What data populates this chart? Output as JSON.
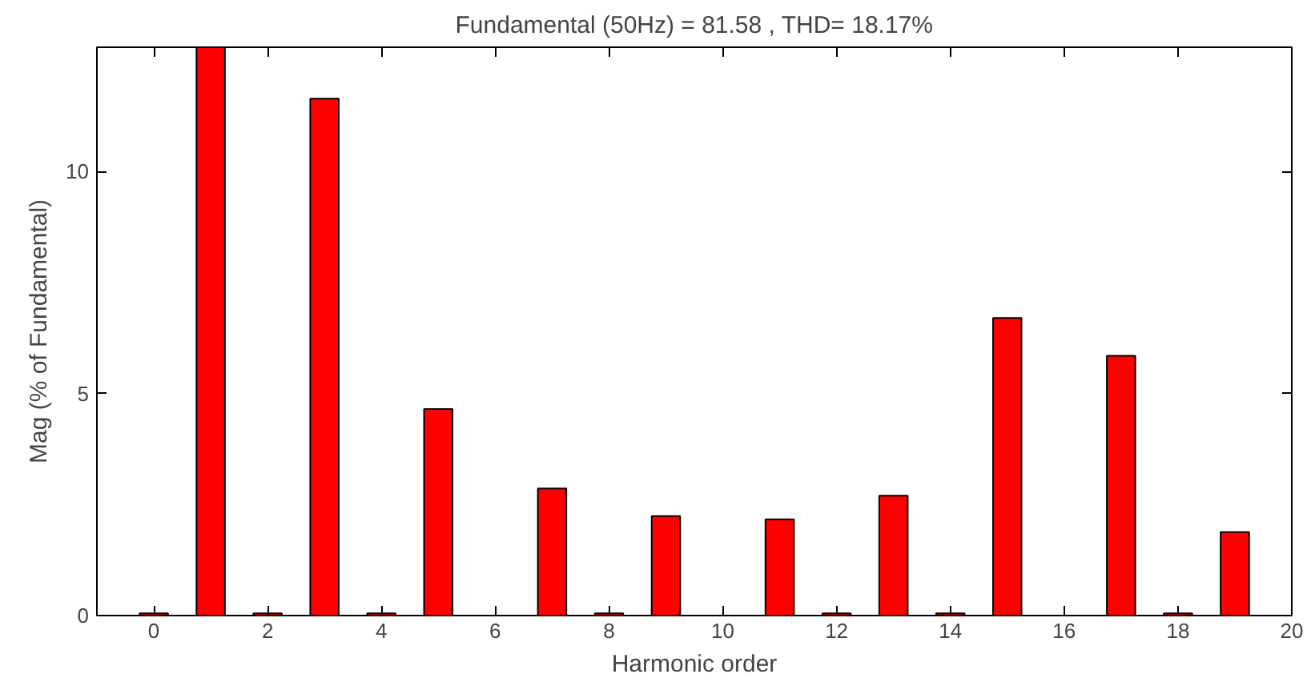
{
  "chart_data": {
    "type": "bar",
    "title": "Fundamental (50Hz) = 81.58 , THD= 18.17%",
    "xlabel": "Harmonic order",
    "ylabel": "Mag (% of Fundamental)",
    "x": [
      0,
      1,
      2,
      3,
      4,
      5,
      6,
      7,
      8,
      9,
      10,
      11,
      12,
      13,
      14,
      15,
      16,
      17,
      18,
      19
    ],
    "values": [
      0.05,
      12.8,
      0.05,
      11.64,
      0.05,
      4.65,
      null,
      2.86,
      0.05,
      2.24,
      null,
      2.17,
      0.05,
      2.7,
      0.05,
      6.7,
      null,
      5.85,
      0.05,
      1.88
    ],
    "color": "#ff0000",
    "xlim": [
      -1,
      20
    ],
    "ylim": [
      0,
      12.8
    ],
    "xticks": [
      0,
      2,
      4,
      6,
      8,
      10,
      12,
      14,
      16,
      18,
      20
    ],
    "yticks": [
      0,
      5,
      10
    ],
    "grid": false
  }
}
